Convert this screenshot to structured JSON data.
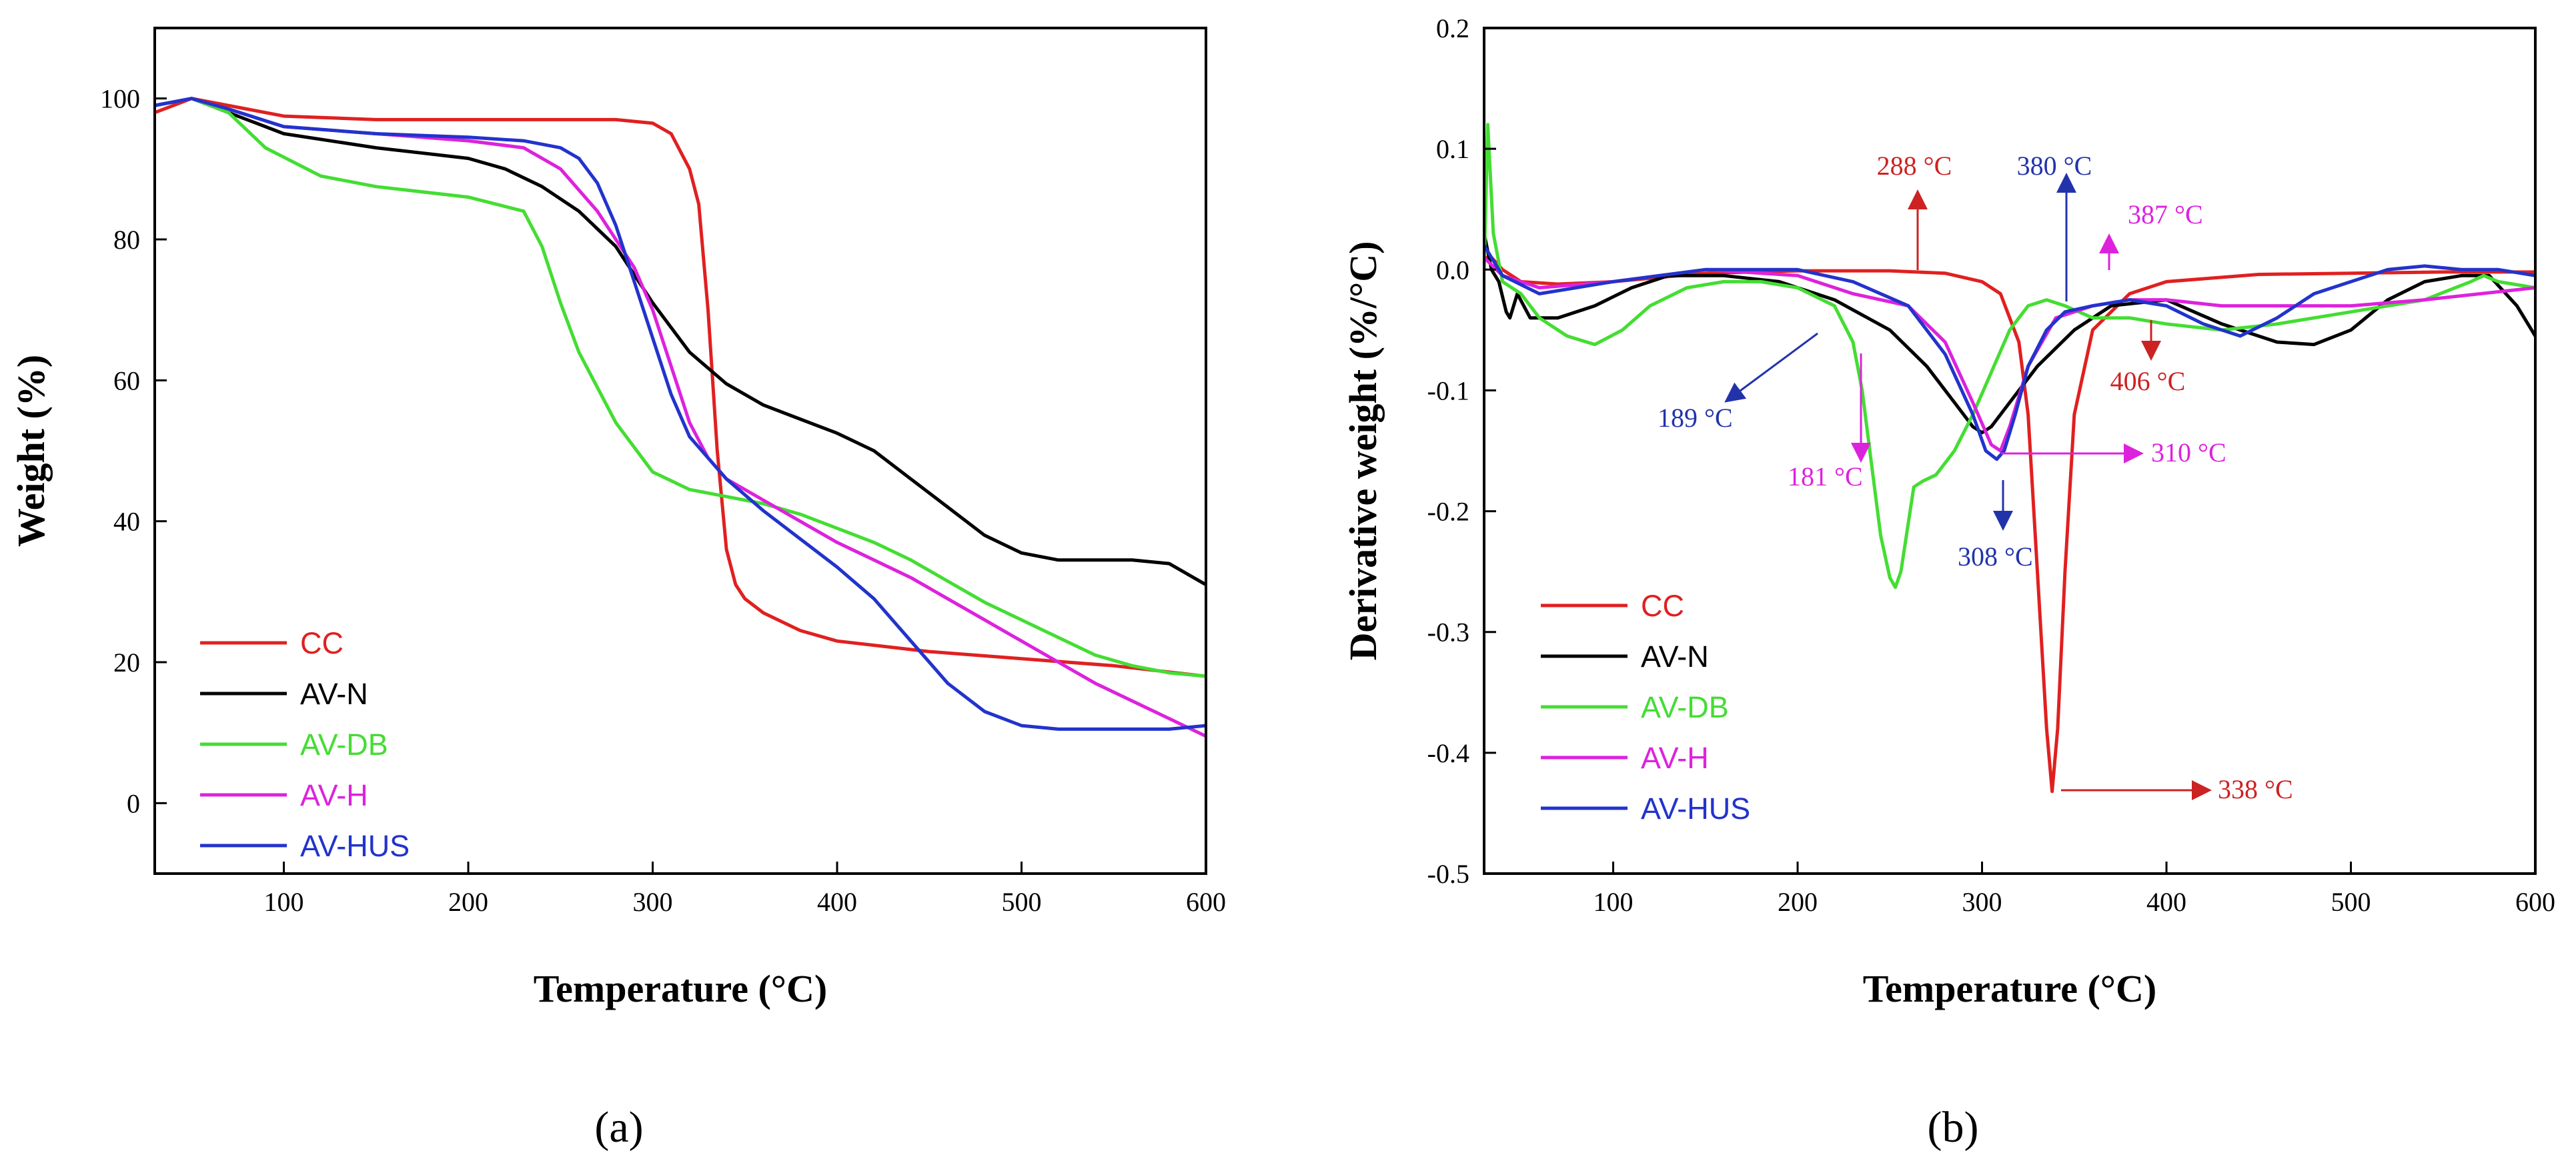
{
  "chart_data": [
    {
      "type": "line",
      "panel_label": "(a)",
      "xlabel": "Temperature (°C)",
      "ylabel": "Weight (%)",
      "xlim": [
        30,
        600
      ],
      "ylim": [
        -10,
        110
      ],
      "xticks": [
        100,
        200,
        300,
        400,
        500,
        600
      ],
      "yticks": [
        0,
        20,
        40,
        60,
        80,
        100
      ],
      "legend_position": "bottom-left",
      "series": [
        {
          "name": "CC",
          "color": "#e02020",
          "x": [
            30,
            50,
            80,
            100,
            150,
            200,
            250,
            280,
            300,
            310,
            320,
            325,
            330,
            335,
            340,
            345,
            350,
            360,
            380,
            400,
            450,
            500,
            550,
            600
          ],
          "y": [
            98,
            100,
            98.5,
            97.5,
            97,
            97,
            97,
            97,
            96.5,
            95,
            90,
            85,
            70,
            50,
            36,
            31,
            29,
            27,
            24.5,
            23,
            21.5,
            20.5,
            19.5,
            18
          ]
        },
        {
          "name": "AV-N",
          "color": "#000000",
          "x": [
            30,
            50,
            70,
            100,
            150,
            200,
            220,
            240,
            260,
            280,
            300,
            320,
            340,
            360,
            380,
            400,
            420,
            440,
            460,
            480,
            500,
            520,
            540,
            560,
            580,
            600
          ],
          "y": [
            99,
            100,
            98,
            95,
            93,
            91.5,
            90,
            87.5,
            84,
            79,
            71,
            64,
            59.5,
            56.5,
            54.5,
            52.5,
            50,
            46,
            42,
            38,
            35.5,
            34.5,
            34.5,
            34.5,
            34,
            31
          ]
        },
        {
          "name": "AV-DB",
          "color": "#44dd33",
          "x": [
            30,
            50,
            70,
            90,
            120,
            150,
            200,
            230,
            240,
            250,
            260,
            280,
            300,
            320,
            340,
            360,
            380,
            400,
            420,
            440,
            460,
            480,
            500,
            520,
            540,
            560,
            580,
            600
          ],
          "y": [
            99,
            100,
            98,
            93,
            89,
            87.5,
            86,
            84,
            79,
            71,
            64,
            54,
            47,
            44.5,
            43.5,
            42.5,
            41,
            39,
            37,
            34.5,
            31.5,
            28.5,
            26,
            23.5,
            21,
            19.5,
            18.5,
            18
          ]
        },
        {
          "name": "AV-H",
          "color": "#dd22dd",
          "x": [
            30,
            50,
            70,
            100,
            150,
            200,
            230,
            250,
            270,
            290,
            300,
            310,
            320,
            330,
            340,
            360,
            380,
            400,
            420,
            440,
            460,
            480,
            500,
            520,
            540,
            560,
            580,
            600
          ],
          "y": [
            99,
            100,
            98.5,
            96,
            95,
            94,
            93,
            90,
            84,
            76,
            70,
            62,
            54,
            49,
            46,
            43,
            40,
            37,
            34.5,
            32,
            29,
            26,
            23,
            20,
            17,
            14.5,
            12,
            9.5
          ]
        },
        {
          "name": "AV-HUS",
          "color": "#2233cc",
          "x": [
            30,
            50,
            70,
            100,
            150,
            200,
            230,
            250,
            260,
            270,
            280,
            290,
            300,
            310,
            320,
            330,
            340,
            360,
            380,
            400,
            420,
            440,
            460,
            480,
            500,
            520,
            540,
            560,
            580,
            600
          ],
          "y": [
            99,
            100,
            98.5,
            96,
            95,
            94.5,
            94,
            93,
            91.5,
            88,
            82,
            74,
            66,
            58,
            52,
            49,
            46,
            41.5,
            37.5,
            33.5,
            29,
            23,
            17,
            13,
            11,
            10.5,
            10.5,
            10.5,
            10.5,
            11
          ]
        }
      ]
    },
    {
      "type": "line",
      "panel_label": "(b)",
      "xlabel": "Temperature (°C)",
      "ylabel": "Derivative weight (%/°C)",
      "xlim": [
        30,
        600
      ],
      "ylim": [
        -0.5,
        0.2
      ],
      "xticks": [
        100,
        200,
        300,
        400,
        500,
        600
      ],
      "yticks": [
        -0.5,
        -0.4,
        -0.3,
        -0.2,
        -0.1,
        0.0,
        0.1,
        0.2
      ],
      "ytick_labels": [
        "-0.5",
        "-0.4",
        "-0.3",
        "-0.2",
        "-0.1",
        "0.0",
        "0.1",
        "0.2"
      ],
      "legend_position": "bottom-left",
      "series": [
        {
          "name": "CC",
          "color": "#e02020",
          "x": [
            30,
            34,
            40,
            50,
            70,
            100,
            150,
            200,
            250,
            280,
            300,
            310,
            320,
            325,
            330,
            335,
            338,
            341,
            345,
            350,
            360,
            380,
            400,
            450,
            500,
            550,
            600
          ],
          "y": [
            0.01,
            0.01,
            0.0,
            -0.01,
            -0.012,
            -0.01,
            -0.003,
            -0.001,
            -0.001,
            -0.003,
            -0.01,
            -0.02,
            -0.06,
            -0.12,
            -0.25,
            -0.38,
            -0.432,
            -0.38,
            -0.25,
            -0.12,
            -0.05,
            -0.02,
            -0.01,
            -0.004,
            -0.003,
            -0.002,
            -0.002
          ]
        },
        {
          "name": "AV-N",
          "color": "#000000",
          "x": [
            30,
            34,
            38,
            42,
            44,
            48,
            55,
            70,
            90,
            110,
            130,
            160,
            190,
            220,
            250,
            270,
            285,
            295,
            300,
            305,
            315,
            330,
            350,
            370,
            400,
            430,
            460,
            480,
            500,
            520,
            540,
            560,
            575,
            590,
            600
          ],
          "y": [
            0.03,
            0.0,
            -0.01,
            -0.035,
            -0.04,
            -0.02,
            -0.04,
            -0.04,
            -0.03,
            -0.015,
            -0.005,
            -0.005,
            -0.01,
            -0.025,
            -0.05,
            -0.08,
            -0.11,
            -0.13,
            -0.135,
            -0.13,
            -0.11,
            -0.08,
            -0.05,
            -0.03,
            -0.025,
            -0.045,
            -0.06,
            -0.062,
            -0.05,
            -0.025,
            -0.01,
            -0.005,
            -0.005,
            -0.03,
            -0.055
          ]
        },
        {
          "name": "AV-DB",
          "color": "#44dd33",
          "x": [
            30,
            32,
            35,
            40,
            50,
            60,
            75,
            90,
            105,
            120,
            140,
            160,
            180,
            200,
            220,
            230,
            235,
            240,
            245,
            250,
            253,
            256,
            260,
            263,
            268,
            275,
            285,
            295,
            305,
            315,
            325,
            335,
            345,
            360,
            380,
            400,
            430,
            460,
            500,
            540,
            565,
            572,
            580,
            600
          ],
          "y": [
            0.0,
            0.12,
            0.03,
            -0.01,
            -0.02,
            -0.04,
            -0.055,
            -0.062,
            -0.05,
            -0.03,
            -0.015,
            -0.01,
            -0.01,
            -0.015,
            -0.03,
            -0.06,
            -0.1,
            -0.16,
            -0.22,
            -0.255,
            -0.263,
            -0.25,
            -0.21,
            -0.18,
            -0.175,
            -0.17,
            -0.15,
            -0.12,
            -0.085,
            -0.05,
            -0.03,
            -0.025,
            -0.03,
            -0.04,
            -0.04,
            -0.045,
            -0.05,
            -0.045,
            -0.035,
            -0.025,
            -0.01,
            -0.005,
            -0.01,
            -0.015
          ]
        },
        {
          "name": "AV-H",
          "color": "#dd22dd",
          "x": [
            30,
            40,
            60,
            100,
            150,
            200,
            230,
            260,
            280,
            295,
            305,
            310,
            315,
            325,
            340,
            360,
            380,
            400,
            430,
            460,
            500,
            540,
            600
          ],
          "y": [
            0.01,
            -0.005,
            -0.015,
            -0.01,
            0.0,
            -0.005,
            -0.02,
            -0.03,
            -0.06,
            -0.11,
            -0.145,
            -0.15,
            -0.13,
            -0.08,
            -0.04,
            -0.03,
            -0.025,
            -0.025,
            -0.03,
            -0.03,
            -0.03,
            -0.025,
            -0.015
          ]
        },
        {
          "name": "AV-HUS",
          "color": "#2233cc",
          "x": [
            30,
            40,
            60,
            100,
            150,
            200,
            230,
            260,
            280,
            295,
            302,
            308,
            312,
            318,
            325,
            335,
            345,
            360,
            380,
            400,
            420,
            440,
            460,
            480,
            500,
            520,
            540,
            560,
            580,
            600
          ],
          "y": [
            0.02,
            -0.005,
            -0.02,
            -0.01,
            0.0,
            0.0,
            -0.01,
            -0.03,
            -0.07,
            -0.12,
            -0.15,
            -0.157,
            -0.15,
            -0.12,
            -0.08,
            -0.05,
            -0.035,
            -0.03,
            -0.025,
            -0.03,
            -0.045,
            -0.055,
            -0.04,
            -0.02,
            -0.01,
            0.0,
            0.003,
            0.0,
            0.0,
            -0.005
          ]
        }
      ],
      "annotations": [
        {
          "label": "288 °C",
          "color": "#cc2222",
          "x": 288,
          "y": 0.06
        },
        {
          "label": "380 °C",
          "color": "#2233aa",
          "x": 380,
          "y": 0.118
        },
        {
          "label": "387 °C",
          "color": "#dd22dd",
          "x": 387,
          "y": 0.06
        },
        {
          "label": "406 °C",
          "color": "#cc2222",
          "x": 406,
          "y": -0.128
        },
        {
          "label": "189 °C",
          "color": "#2233aa",
          "x": 140,
          "y": -0.178
        },
        {
          "label": "181 °C",
          "color": "#dd22dd",
          "x": 217,
          "y": -0.246
        },
        {
          "label": "310 °C",
          "color": "#dd22dd",
          "x": 353,
          "y": -0.208
        },
        {
          "label": "308 °C",
          "color": "#2233aa",
          "x": 324,
          "y": -0.345
        },
        {
          "label": "338 °C",
          "color": "#cc2222",
          "x": 384,
          "y": -0.402
        }
      ]
    }
  ]
}
